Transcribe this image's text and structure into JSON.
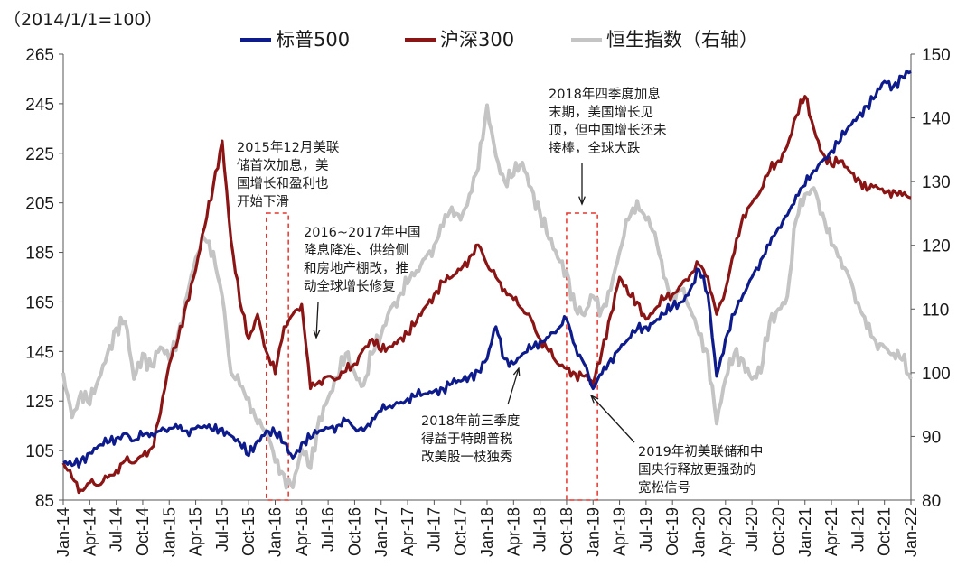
{
  "chart_data": {
    "type": "line",
    "unit_label": "（2014/1/1=100）",
    "x_ticks": [
      "Jan-14",
      "Apr-14",
      "Jul-14",
      "Oct-14",
      "Jan-15",
      "Apr-15",
      "Jul-15",
      "Oct-15",
      "Jan-16",
      "Apr-16",
      "Jul-16",
      "Oct-16",
      "Jan-17",
      "Apr-17",
      "Jul-17",
      "Oct-17",
      "Jan-18",
      "Apr-18",
      "Jul-18",
      "Oct-18",
      "Jan-19",
      "Apr-19",
      "Jul-19",
      "Oct-19",
      "Jan-20",
      "Apr-20",
      "Jul-20",
      "Oct-20",
      "Jan-21",
      "Apr-21",
      "Jul-21",
      "Oct-21",
      "Jan-22"
    ],
    "y_left": {
      "ylim": [
        85,
        265
      ],
      "ticks": [
        85,
        105,
        125,
        145,
        165,
        185,
        205,
        225,
        245,
        265
      ]
    },
    "y_right": {
      "ylim": [
        80,
        150
      ],
      "ticks": [
        80,
        90,
        100,
        110,
        120,
        130,
        140,
        150
      ]
    },
    "legend_position": "top",
    "grid": false,
    "series": [
      {
        "name": "标普500",
        "color": "#0d1b8c",
        "axis": "left",
        "points": [
          [
            0,
            100
          ],
          [
            1,
            99
          ],
          [
            2,
            101
          ],
          [
            3,
            104
          ],
          [
            4,
            107
          ],
          [
            5,
            108
          ],
          [
            6,
            110
          ],
          [
            7,
            112
          ],
          [
            8,
            109
          ],
          [
            9,
            111
          ],
          [
            10,
            112
          ],
          [
            11,
            113
          ],
          [
            12,
            114
          ],
          [
            13,
            114
          ],
          [
            14,
            113
          ],
          [
            15,
            114
          ],
          [
            16,
            115
          ],
          [
            17,
            113
          ],
          [
            18,
            114
          ],
          [
            19,
            111
          ],
          [
            20,
            108
          ],
          [
            21,
            103
          ],
          [
            22,
            109
          ],
          [
            23,
            113
          ],
          [
            24,
            112
          ],
          [
            25,
            108
          ],
          [
            26,
            102
          ],
          [
            27,
            108
          ],
          [
            28,
            110
          ],
          [
            29,
            113
          ],
          [
            30,
            114
          ],
          [
            31,
            115
          ],
          [
            32,
            117
          ],
          [
            33,
            114
          ],
          [
            34,
            113
          ],
          [
            35,
            118
          ],
          [
            36,
            121
          ],
          [
            37,
            123
          ],
          [
            38,
            124
          ],
          [
            39,
            126
          ],
          [
            40,
            127
          ],
          [
            41,
            128
          ],
          [
            42,
            129
          ],
          [
            43,
            130
          ],
          [
            44,
            132
          ],
          [
            45,
            133
          ],
          [
            46,
            135
          ],
          [
            47,
            137
          ],
          [
            48,
            142
          ],
          [
            49,
            155
          ],
          [
            50,
            142
          ],
          [
            51,
            140
          ],
          [
            52,
            144
          ],
          [
            53,
            146
          ],
          [
            54,
            149
          ],
          [
            55,
            151
          ],
          [
            56,
            154
          ],
          [
            57,
            158
          ],
          [
            58,
            147
          ],
          [
            59,
            140
          ],
          [
            60,
            130
          ],
          [
            61,
            136
          ],
          [
            62,
            142
          ],
          [
            63,
            146
          ],
          [
            64,
            150
          ],
          [
            65,
            154
          ],
          [
            66,
            155
          ],
          [
            67,
            157
          ],
          [
            68,
            160
          ],
          [
            69,
            163
          ],
          [
            70,
            165
          ],
          [
            71,
            170
          ],
          [
            72,
            178
          ],
          [
            73,
            168
          ],
          [
            74,
            135
          ],
          [
            75,
            150
          ],
          [
            76,
            160
          ],
          [
            77,
            168
          ],
          [
            78,
            175
          ],
          [
            79,
            182
          ],
          [
            80,
            188
          ],
          [
            81,
            195
          ],
          [
            82,
            200
          ],
          [
            83,
            208
          ],
          [
            84,
            212
          ],
          [
            85,
            218
          ],
          [
            86,
            222
          ],
          [
            87,
            226
          ],
          [
            88,
            230
          ],
          [
            89,
            236
          ],
          [
            90,
            240
          ],
          [
            91,
            244
          ],
          [
            92,
            248
          ],
          [
            93,
            254
          ],
          [
            94,
            252
          ],
          [
            95,
            256
          ],
          [
            96,
            258
          ]
        ]
      },
      {
        "name": "沪深300",
        "color": "#8b1414",
        "axis": "left",
        "points": [
          [
            0,
            100
          ],
          [
            1,
            94
          ],
          [
            2,
            89
          ],
          [
            3,
            92
          ],
          [
            4,
            91
          ],
          [
            5,
            94
          ],
          [
            6,
            97
          ],
          [
            7,
            101
          ],
          [
            8,
            100
          ],
          [
            9,
            103
          ],
          [
            10,
            106
          ],
          [
            11,
            120
          ],
          [
            12,
            140
          ],
          [
            13,
            150
          ],
          [
            14,
            165
          ],
          [
            15,
            178
          ],
          [
            16,
            195
          ],
          [
            17,
            212
          ],
          [
            18,
            230
          ],
          [
            19,
            190
          ],
          [
            20,
            165
          ],
          [
            21,
            150
          ],
          [
            22,
            160
          ],
          [
            23,
            145
          ],
          [
            24,
            136
          ],
          [
            25,
            155
          ],
          [
            26,
            160
          ],
          [
            27,
            164
          ],
          [
            28,
            130
          ],
          [
            29,
            133
          ],
          [
            30,
            135
          ],
          [
            31,
            134
          ],
          [
            32,
            137
          ],
          [
            33,
            140
          ],
          [
            34,
            146
          ],
          [
            35,
            150
          ],
          [
            36,
            145
          ],
          [
            37,
            147
          ],
          [
            38,
            150
          ],
          [
            39,
            152
          ],
          [
            40,
            157
          ],
          [
            41,
            163
          ],
          [
            42,
            168
          ],
          [
            43,
            173
          ],
          [
            44,
            175
          ],
          [
            45,
            178
          ],
          [
            46,
            183
          ],
          [
            47,
            188
          ],
          [
            48,
            180
          ],
          [
            49,
            175
          ],
          [
            50,
            170
          ],
          [
            51,
            166
          ],
          [
            52,
            162
          ],
          [
            53,
            158
          ],
          [
            54,
            150
          ],
          [
            55,
            145
          ],
          [
            56,
            140
          ],
          [
            57,
            138
          ],
          [
            58,
            136
          ],
          [
            59,
            135
          ],
          [
            60,
            132
          ],
          [
            61,
            145
          ],
          [
            62,
            160
          ],
          [
            63,
            175
          ],
          [
            64,
            168
          ],
          [
            65,
            165
          ],
          [
            66,
            158
          ],
          [
            67,
            162
          ],
          [
            68,
            166
          ],
          [
            69,
            168
          ],
          [
            70,
            172
          ],
          [
            71,
            176
          ],
          [
            72,
            180
          ],
          [
            73,
            175
          ],
          [
            74,
            160
          ],
          [
            75,
            170
          ],
          [
            76,
            185
          ],
          [
            77,
            200
          ],
          [
            78,
            205
          ],
          [
            79,
            210
          ],
          [
            80,
            218
          ],
          [
            81,
            222
          ],
          [
            82,
            228
          ],
          [
            83,
            240
          ],
          [
            84,
            248
          ],
          [
            85,
            235
          ],
          [
            86,
            225
          ],
          [
            87,
            220
          ],
          [
            88,
            222
          ],
          [
            89,
            218
          ],
          [
            90,
            215
          ],
          [
            91,
            210
          ],
          [
            92,
            212
          ],
          [
            93,
            209
          ],
          [
            94,
            210
          ],
          [
            95,
            208
          ],
          [
            96,
            207
          ]
        ]
      },
      {
        "name": "恒生指数（右轴）",
        "color": "#c4c4c4",
        "axis": "right",
        "points": [
          [
            0,
            100
          ],
          [
            1,
            93
          ],
          [
            2,
            97
          ],
          [
            3,
            95
          ],
          [
            4,
            99
          ],
          [
            5,
            103
          ],
          [
            6,
            107
          ],
          [
            7,
            108
          ],
          [
            8,
            99
          ],
          [
            9,
            103
          ],
          [
            10,
            101
          ],
          [
            11,
            104
          ],
          [
            12,
            102
          ],
          [
            13,
            106
          ],
          [
            14,
            112
          ],
          [
            15,
            118
          ],
          [
            16,
            121
          ],
          [
            17,
            119
          ],
          [
            18,
            112
          ],
          [
            19,
            100
          ],
          [
            20,
            98
          ],
          [
            21,
            96
          ],
          [
            22,
            92
          ],
          [
            23,
            91
          ],
          [
            24,
            86
          ],
          [
            25,
            84
          ],
          [
            26,
            82
          ],
          [
            27,
            88
          ],
          [
            28,
            85
          ],
          [
            29,
            93
          ],
          [
            30,
            96
          ],
          [
            31,
            99
          ],
          [
            32,
            103
          ],
          [
            33,
            100
          ],
          [
            34,
            98
          ],
          [
            35,
            103
          ],
          [
            36,
            106
          ],
          [
            37,
            110
          ],
          [
            38,
            112
          ],
          [
            39,
            114
          ],
          [
            40,
            116
          ],
          [
            41,
            118
          ],
          [
            42,
            120
          ],
          [
            43,
            123
          ],
          [
            44,
            126
          ],
          [
            45,
            124
          ],
          [
            46,
            128
          ],
          [
            47,
            132
          ],
          [
            48,
            142
          ],
          [
            49,
            134
          ],
          [
            50,
            130
          ],
          [
            51,
            131
          ],
          [
            52,
            133
          ],
          [
            53,
            129
          ],
          [
            54,
            125
          ],
          [
            55,
            121
          ],
          [
            56,
            118
          ],
          [
            57,
            116
          ],
          [
            58,
            110
          ],
          [
            59,
            109
          ],
          [
            60,
            112
          ],
          [
            61,
            110
          ],
          [
            62,
            113
          ],
          [
            63,
            119
          ],
          [
            64,
            124
          ],
          [
            65,
            127
          ],
          [
            66,
            124
          ],
          [
            67,
            122
          ],
          [
            68,
            115
          ],
          [
            69,
            112
          ],
          [
            70,
            113
          ],
          [
            71,
            110
          ],
          [
            72,
            106
          ],
          [
            73,
            103
          ],
          [
            74,
            92
          ],
          [
            75,
            99
          ],
          [
            76,
            103
          ],
          [
            77,
            102
          ],
          [
            78,
            99
          ],
          [
            79,
            100
          ],
          [
            80,
            108
          ],
          [
            81,
            110
          ],
          [
            82,
            112
          ],
          [
            83,
            124
          ],
          [
            84,
            128
          ],
          [
            85,
            129
          ],
          [
            86,
            125
          ],
          [
            87,
            120
          ],
          [
            88,
            118
          ],
          [
            89,
            115
          ],
          [
            90,
            111
          ],
          [
            91,
            107
          ],
          [
            92,
            105
          ],
          [
            93,
            104
          ],
          [
            94,
            103
          ],
          [
            95,
            102
          ],
          [
            96,
            99
          ]
        ]
      }
    ],
    "annotations": [
      {
        "text": "2015年12月美联\n储首次加息，美\n国增长和盈利也\n开始下滑"
      },
      {
        "text": "2016~2017年中国\n降息降准、供给侧\n和房地产棚改，推\n动全球增长修复"
      },
      {
        "text": "2018年前三季度\n得益于特朗普税\n改美股一枝独秀"
      },
      {
        "text": "2018年四季度加息\n末期，美国增长见\n顶，但中国增长还未\n接棒，全球大跌"
      },
      {
        "text": "2019年初美联储和中\n国央行释放更强劲的\n宽松信号"
      }
    ],
    "highlight_periods": [
      [
        "Dec-15",
        "Feb-16"
      ],
      [
        "Oct-18",
        "Jan-19"
      ]
    ]
  }
}
